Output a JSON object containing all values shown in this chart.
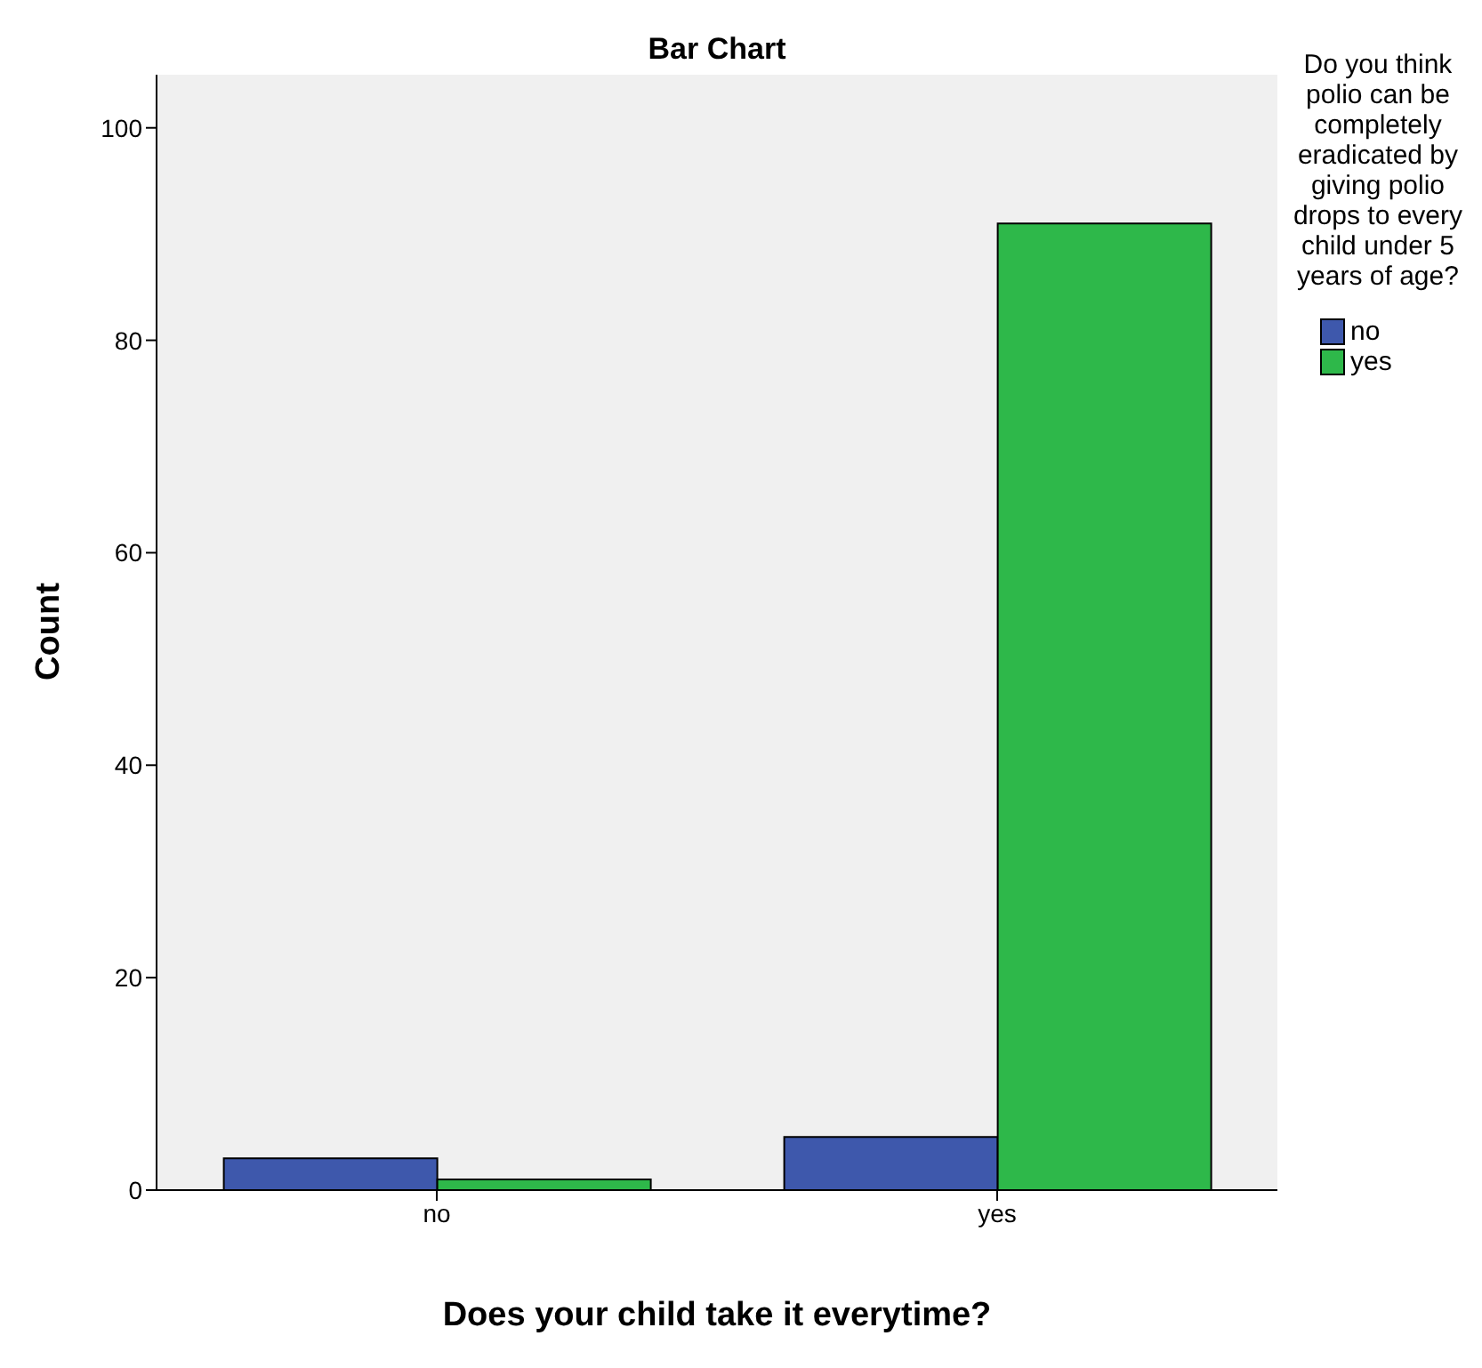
{
  "chart_data": {
    "type": "bar",
    "title": "Bar Chart",
    "xlabel": "Does your child take it everytime?",
    "ylabel": "Count",
    "legend_title": "Do you think polio can be completely eradicated by giving polio drops to every child under 5 years of age?",
    "categories": [
      "no",
      "yes"
    ],
    "series": [
      {
        "name": "no",
        "color": "#3e58ac",
        "values": [
          3,
          5
        ]
      },
      {
        "name": "yes",
        "color": "#2eb84a",
        "values": [
          1,
          91
        ]
      }
    ],
    "ylim": [
      0,
      105
    ],
    "yticks": [
      0,
      20,
      40,
      60,
      80,
      100
    ],
    "grid": false,
    "legend": "right"
  }
}
